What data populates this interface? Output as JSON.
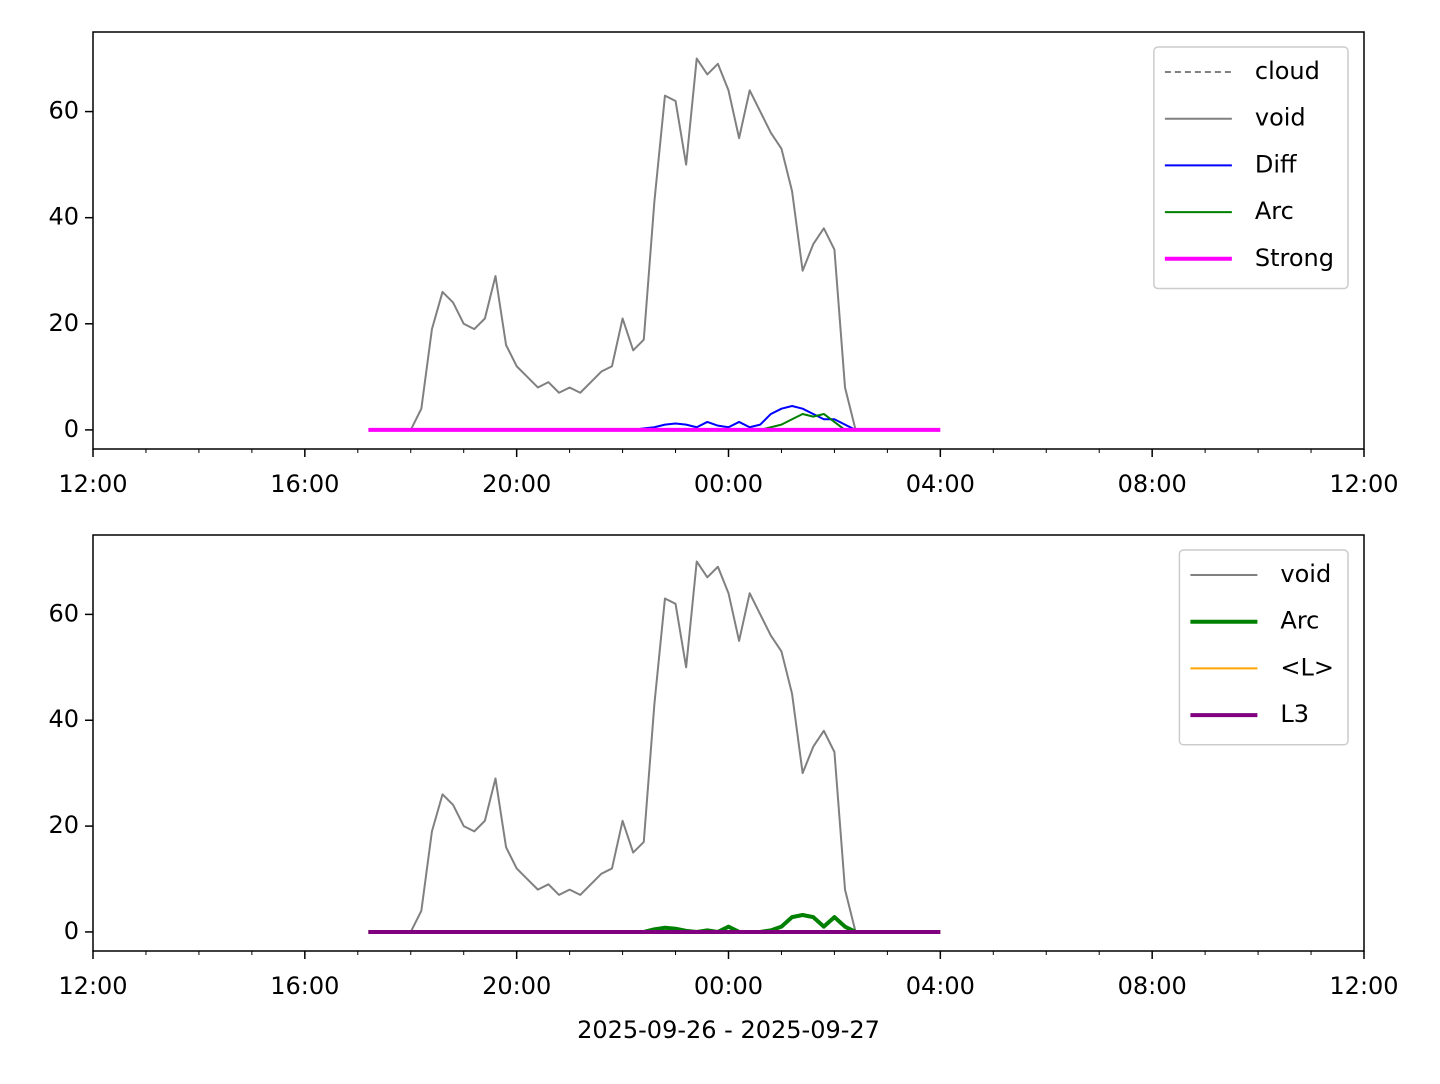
{
  "chart_data": [
    {
      "type": "line",
      "legend": "upper right",
      "x": [
        5.2,
        5.4,
        5.6,
        5.8,
        6.0,
        6.2,
        6.4,
        6.6,
        6.8,
        7.0,
        7.2,
        7.4,
        7.6,
        7.8,
        8.0,
        8.2,
        8.4,
        8.6,
        8.8,
        9.0,
        9.2,
        9.4,
        9.6,
        9.8,
        10.0,
        10.2,
        10.4,
        10.6,
        10.8,
        11.0,
        11.2,
        11.4,
        11.6,
        11.8,
        12.0,
        12.2,
        12.4,
        12.6,
        12.8,
        13.0,
        13.2,
        13.4,
        13.6,
        13.8,
        14.0,
        14.2,
        14.4,
        14.6,
        14.8,
        15.0,
        15.2,
        15.4,
        15.6,
        15.8,
        16.0
      ],
      "xlim": [
        0,
        24
      ],
      "xticks": [
        {
          "value": 0,
          "label": "12:00"
        },
        {
          "value": 4,
          "label": "16:00"
        },
        {
          "value": 8,
          "label": "20:00"
        },
        {
          "value": 12,
          "label": "00:00"
        },
        {
          "value": 16,
          "label": "04:00"
        },
        {
          "value": 20,
          "label": "08:00"
        },
        {
          "value": 24,
          "label": "12:00"
        }
      ],
      "xminorticks": [
        1,
        2,
        3,
        5,
        6,
        7,
        9,
        10,
        11,
        13,
        14,
        15,
        17,
        18,
        19,
        21,
        22,
        23
      ],
      "ylim": [
        -3.6,
        75
      ],
      "yticks": [
        0,
        20,
        40,
        60
      ],
      "series": [
        {
          "name": "cloud",
          "color": "#808080",
          "linestyle": "dashed",
          "values": [
            null,
            null,
            null,
            null,
            null,
            null,
            null,
            null,
            null,
            null,
            null,
            null,
            null,
            null,
            null,
            null,
            null,
            null,
            null,
            null,
            null,
            null,
            null,
            null,
            null,
            null,
            null,
            null,
            null,
            null,
            null,
            null,
            null,
            null,
            null,
            null,
            null,
            null,
            null,
            null,
            null,
            null,
            null,
            null,
            null,
            null,
            null,
            null,
            null,
            null,
            null,
            null,
            null,
            null,
            null
          ]
        },
        {
          "name": "void",
          "color": "#808080",
          "linestyle": "solid",
          "values": [
            null,
            null,
            null,
            null,
            0,
            4,
            19,
            26,
            24,
            20,
            19,
            21,
            29,
            16,
            12,
            10,
            8,
            9,
            7,
            8,
            7,
            9,
            11,
            12,
            21,
            15,
            17,
            43,
            63,
            62,
            50,
            70,
            67,
            69,
            64,
            55,
            64,
            60,
            56,
            53,
            45,
            30,
            35,
            38,
            34,
            8,
            0,
            null,
            null,
            null,
            null,
            null,
            null,
            null,
            null
          ]
        },
        {
          "name": "Diff",
          "color": "#0000ff",
          "linestyle": "solid",
          "values": [
            null,
            null,
            null,
            null,
            null,
            null,
            null,
            null,
            null,
            null,
            null,
            null,
            null,
            null,
            null,
            null,
            null,
            null,
            null,
            null,
            null,
            null,
            null,
            null,
            0,
            0,
            0.3,
            0.5,
            1,
            1.2,
            1,
            0.5,
            1.5,
            0.8,
            0.5,
            1.5,
            0.5,
            1,
            3,
            4,
            4.5,
            4,
            3,
            2,
            2,
            1,
            0,
            null,
            null,
            null,
            null,
            null,
            null,
            null,
            null
          ]
        },
        {
          "name": "Arc",
          "color": "#008000",
          "linestyle": "solid",
          "values": [
            null,
            null,
            null,
            null,
            null,
            null,
            null,
            null,
            null,
            null,
            null,
            null,
            null,
            null,
            null,
            null,
            null,
            null,
            null,
            null,
            null,
            null,
            null,
            null,
            null,
            null,
            null,
            null,
            null,
            null,
            null,
            null,
            null,
            null,
            null,
            null,
            null,
            0,
            0.5,
            1,
            2,
            3,
            2.5,
            3,
            1.5,
            0,
            0,
            null,
            null,
            null,
            null,
            null,
            null,
            null,
            null
          ]
        },
        {
          "name": "Strong",
          "color": "#ff00ff",
          "linestyle": "thick",
          "values": [
            0,
            0,
            0,
            0,
            0,
            0,
            0,
            0,
            0,
            0,
            0,
            0,
            0,
            0,
            0,
            0,
            0,
            0,
            0,
            0,
            0,
            0,
            0,
            0,
            0,
            0,
            0,
            0,
            0,
            0,
            0,
            0,
            0,
            0,
            0,
            0,
            0,
            0,
            0,
            0,
            0,
            0,
            0,
            0,
            0,
            0,
            0,
            0,
            0,
            0,
            0,
            0,
            0,
            0,
            0
          ]
        }
      ]
    },
    {
      "type": "line",
      "legend": "upper right",
      "xlabel": "2025-09-26 - 2025-09-27",
      "x": [
        5.2,
        5.4,
        5.6,
        5.8,
        6.0,
        6.2,
        6.4,
        6.6,
        6.8,
        7.0,
        7.2,
        7.4,
        7.6,
        7.8,
        8.0,
        8.2,
        8.4,
        8.6,
        8.8,
        9.0,
        9.2,
        9.4,
        9.6,
        9.8,
        10.0,
        10.2,
        10.4,
        10.6,
        10.8,
        11.0,
        11.2,
        11.4,
        11.6,
        11.8,
        12.0,
        12.2,
        12.4,
        12.6,
        12.8,
        13.0,
        13.2,
        13.4,
        13.6,
        13.8,
        14.0,
        14.2,
        14.4,
        14.6,
        14.8,
        15.0,
        15.2,
        15.4,
        15.6,
        15.8,
        16.0
      ],
      "xlim": [
        0,
        24
      ],
      "xticks": [
        {
          "value": 0,
          "label": "12:00"
        },
        {
          "value": 4,
          "label": "16:00"
        },
        {
          "value": 8,
          "label": "20:00"
        },
        {
          "value": 12,
          "label": "00:00"
        },
        {
          "value": 16,
          "label": "04:00"
        },
        {
          "value": 20,
          "label": "08:00"
        },
        {
          "value": 24,
          "label": "12:00"
        }
      ],
      "xminorticks": [
        1,
        2,
        3,
        5,
        6,
        7,
        9,
        10,
        11,
        13,
        14,
        15,
        17,
        18,
        19,
        21,
        22,
        23
      ],
      "ylim": [
        -3.6,
        75
      ],
      "yticks": [
        0,
        20,
        40,
        60
      ],
      "series": [
        {
          "name": "void",
          "color": "#808080",
          "linestyle": "solid",
          "values": [
            null,
            null,
            null,
            null,
            0,
            4,
            19,
            26,
            24,
            20,
            19,
            21,
            29,
            16,
            12,
            10,
            8,
            9,
            7,
            8,
            7,
            9,
            11,
            12,
            21,
            15,
            17,
            43,
            63,
            62,
            50,
            70,
            67,
            69,
            64,
            55,
            64,
            60,
            56,
            53,
            45,
            30,
            35,
            38,
            34,
            8,
            0,
            null,
            null,
            null,
            null,
            null,
            null,
            null,
            null
          ]
        },
        {
          "name": "Arc",
          "color": "#008000",
          "linestyle": "thick",
          "values": [
            0,
            0,
            0,
            0,
            0,
            0,
            0,
            0,
            0,
            0,
            0,
            0,
            0,
            0,
            0,
            0,
            0,
            0,
            0,
            0,
            0,
            0,
            0,
            0,
            0,
            0,
            0,
            0.5,
            0.8,
            0.6,
            0.2,
            0,
            0.3,
            0,
            1,
            0,
            0,
            0,
            0.3,
            1,
            2.8,
            3.2,
            2.8,
            1,
            2.8,
            1,
            0,
            0,
            0,
            0,
            0,
            0,
            0,
            0,
            0
          ]
        },
        {
          "name": "<L>",
          "color": "#ffa500",
          "linestyle": "solid",
          "values": [
            0,
            0,
            0,
            0,
            0,
            0,
            0,
            0,
            0,
            0,
            0,
            0,
            0,
            0,
            0,
            0,
            0,
            0,
            0,
            0,
            0,
            0,
            0,
            0,
            0,
            0,
            0,
            0,
            0,
            0,
            0,
            0,
            0,
            0,
            0,
            0,
            0,
            0,
            0,
            0,
            0,
            0,
            0,
            0,
            0,
            0,
            0,
            0,
            0,
            0,
            0,
            0,
            0,
            0,
            0
          ]
        },
        {
          "name": "L3",
          "color": "#800080",
          "linestyle": "thick",
          "values": [
            0,
            0,
            0,
            0,
            0,
            0,
            0,
            0,
            0,
            0,
            0,
            0,
            0,
            0,
            0,
            0,
            0,
            0,
            0,
            0,
            0,
            0,
            0,
            0,
            0,
            0,
            0,
            0,
            0,
            0,
            0,
            0,
            0,
            0,
            0,
            0,
            0,
            0,
            0,
            0,
            0,
            0,
            0,
            0,
            0,
            0,
            0,
            0,
            0,
            0,
            0,
            0,
            0,
            0,
            0
          ]
        }
      ]
    }
  ]
}
